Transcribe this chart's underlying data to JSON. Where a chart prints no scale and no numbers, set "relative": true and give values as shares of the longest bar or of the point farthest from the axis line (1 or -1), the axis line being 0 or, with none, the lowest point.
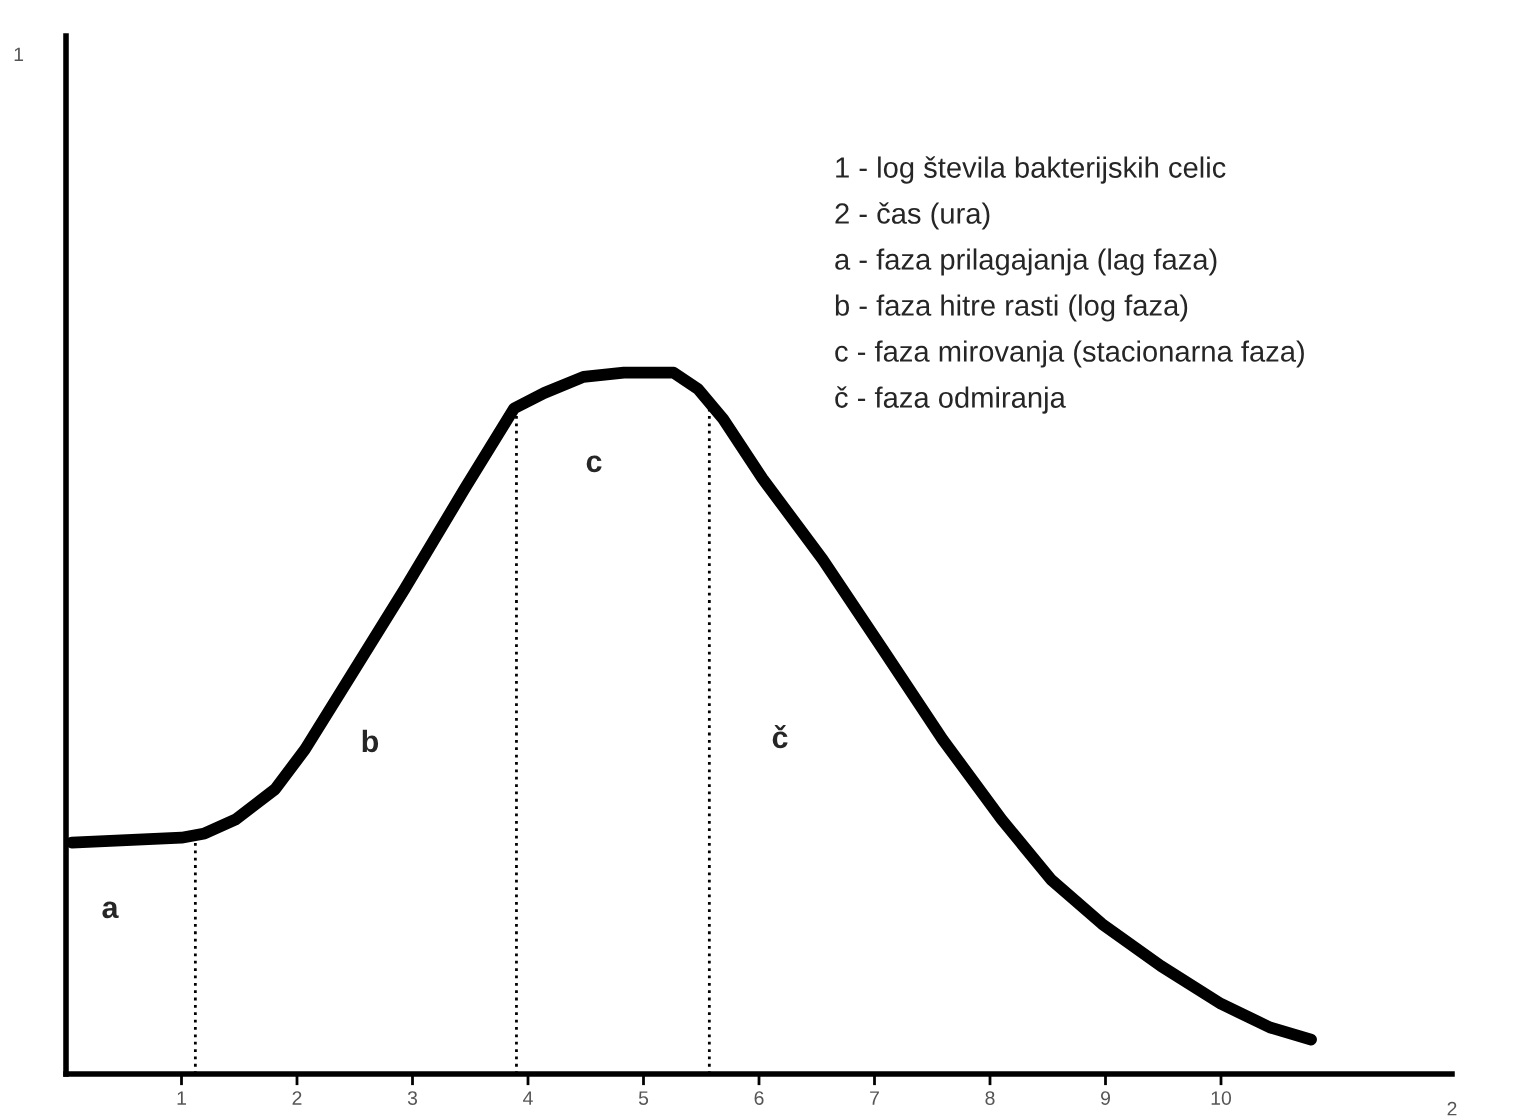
{
  "chart_data": {
    "type": "line",
    "relative": true,
    "xlabel": "2",
    "x": [
      0.05,
      1.0,
      1.2,
      1.47,
      1.81,
      2.07,
      2.5,
      2.93,
      3.45,
      3.88,
      4.14,
      4.48,
      4.83,
      5.26,
      5.47,
      5.69,
      6.03,
      6.55,
      7.07,
      7.59,
      8.1,
      8.53,
      8.97,
      9.48,
      10.0,
      10.43,
      10.78
    ],
    "series": [
      {
        "color": "#000000",
        "values": [
          0.33,
          0.337,
          0.343,
          0.363,
          0.406,
          0.463,
          0.577,
          0.691,
          0.834,
          0.949,
          0.971,
          0.994,
          1.0,
          1.0,
          0.977,
          0.934,
          0.849,
          0.734,
          0.606,
          0.477,
          0.363,
          0.277,
          0.214,
          0.154,
          0.1,
          0.066,
          0.049
        ]
      }
    ],
    "xlim": [
      0,
      12
    ],
    "xticks": [
      1,
      2,
      3,
      4,
      5,
      6,
      7,
      8,
      9,
      10
    ],
    "ref_lines": [
      {
        "axis": "x",
        "value": 1.12,
        "color": "#000000",
        "line_style": "dotted"
      },
      {
        "axis": "x",
        "value": 3.9,
        "color": "#000000",
        "line_style": "dotted"
      },
      {
        "axis": "x",
        "value": 5.57,
        "color": "#000000",
        "line_style": "dotted"
      }
    ],
    "annotations": [
      "1",
      "a",
      "b",
      "c",
      "č",
      "1 - log števila bakterijskih celic",
      "2 - čas (ura)",
      "a - faza prilagajanja (lag faza)",
      "b - faza hitre rasti (log faza)",
      "c - faza mirovanja (stacionarna faza)",
      "č - faza odmiranja"
    ],
    "tick_labels": "x",
    "grid": false,
    "legend": false,
    "marker": "none",
    "line_style": "solid"
  }
}
